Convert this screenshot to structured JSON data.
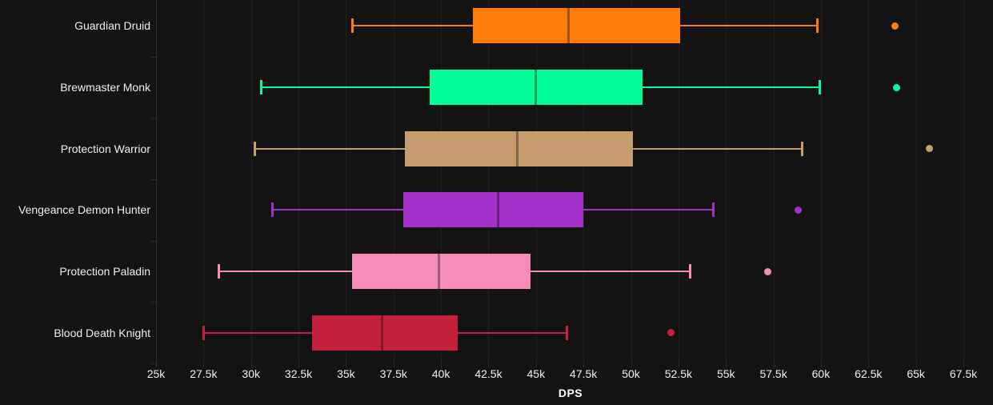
{
  "chart_data": {
    "type": "boxplot",
    "title": "",
    "xlabel": "DPS",
    "ylabel": "",
    "xlim": [
      25000,
      67500
    ],
    "tick_interval": 2500,
    "x_tick_labels": [
      "25k",
      "27.5k",
      "30k",
      "32.5k",
      "35k",
      "37.5k",
      "40k",
      "42.5k",
      "45k",
      "47.5k",
      "50k",
      "52.5k",
      "55k",
      "57.5k",
      "60k",
      "62.5k",
      "65k",
      "67.5k"
    ],
    "categories": [
      "Guardian Druid",
      "Brewmaster Monk",
      "Protection Warrior",
      "Vengeance Demon Hunter",
      "Protection Paladin",
      "Blood Death Knight"
    ],
    "grid": true,
    "legend": "none",
    "background_color": "#131313",
    "gridline_color": "#1f1f1f",
    "axis_color": "#2e2e2e",
    "text_color": "#f0f0f0",
    "series": [
      {
        "name": "Guardian Druid",
        "color": "#FF7D0A",
        "low": 35300,
        "q1": 41700,
        "median": 46700,
        "q3": 52600,
        "high": 59800,
        "outliers": [
          63900
        ]
      },
      {
        "name": "Brewmaster Monk",
        "color": "#00FF96",
        "low": 30500,
        "q1": 39400,
        "median": 45000,
        "q3": 50600,
        "high": 59900,
        "outliers": [
          64000
        ]
      },
      {
        "name": "Protection Warrior",
        "color": "#C79C6E",
        "low": 30200,
        "q1": 38100,
        "median": 44000,
        "q3": 50100,
        "high": 59000,
        "outliers": [
          65700
        ]
      },
      {
        "name": "Vengeance Demon Hunter",
        "color": "#A330C9",
        "low": 31100,
        "q1": 38000,
        "median": 43000,
        "q3": 47500,
        "high": 54300,
        "outliers": [
          58800
        ]
      },
      {
        "name": "Protection Paladin",
        "color": "#F58CBA",
        "low": 28300,
        "q1": 35300,
        "median": 39900,
        "q3": 44700,
        "high": 53100,
        "outliers": [
          57200
        ]
      },
      {
        "name": "Blood Death Knight",
        "color": "#C41F3B",
        "low": 27500,
        "q1": 33200,
        "median": 36900,
        "q3": 40900,
        "high": 46600,
        "outliers": [
          52100
        ]
      }
    ]
  }
}
